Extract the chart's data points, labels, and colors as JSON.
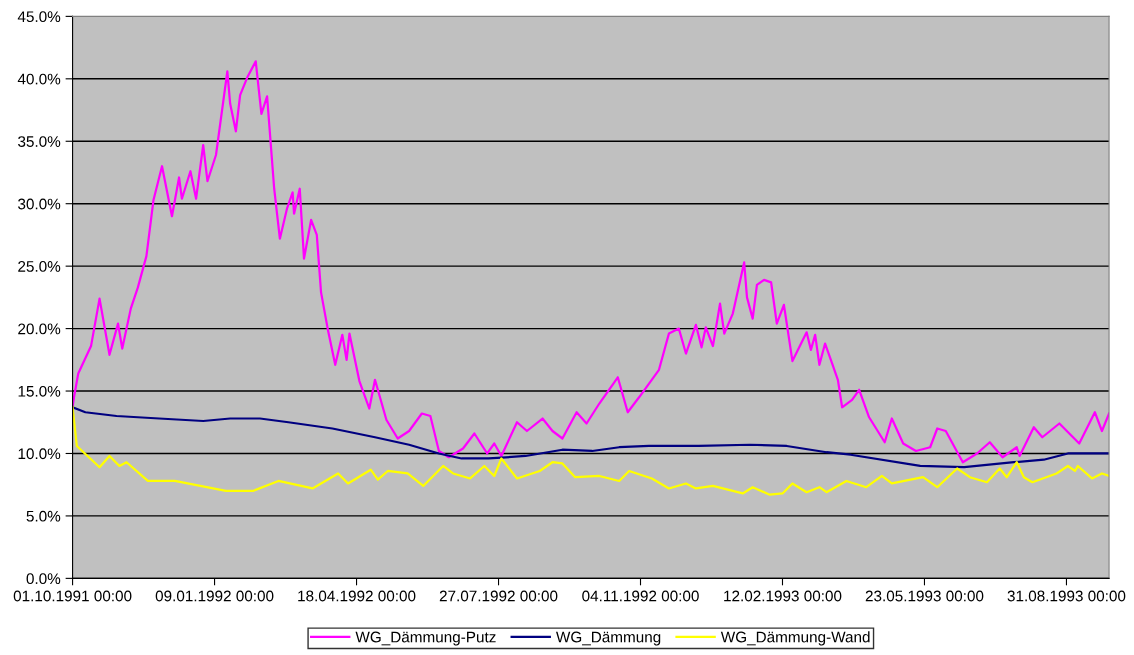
{
  "chart_data": {
    "type": "line",
    "xlim": [
      "1991-10-01T00:00",
      "1993-09-30T00:00"
    ],
    "xticks": [
      {
        "value": "1991-10-01T00:00",
        "label": "01.10.1991 00:00"
      },
      {
        "value": "1992-01-09T00:00",
        "label": "09.01.1992 00:00"
      },
      {
        "value": "1992-04-18T00:00",
        "label": "18.04.1992 00:00"
      },
      {
        "value": "1992-07-27T00:00",
        "label": "27.07.1992 00:00"
      },
      {
        "value": "1992-11-04T00:00",
        "label": "04.11.1992 00:00"
      },
      {
        "value": "1993-02-12T00:00",
        "label": "12.02.1993 00:00"
      },
      {
        "value": "1993-05-23T00:00",
        "label": "23.05.1993 00:00"
      },
      {
        "value": "1993-08-31T00:00",
        "label": "31.08.1993 00:00"
      }
    ],
    "ylim": [
      0,
      45
    ],
    "yticks": [
      {
        "value": 0,
        "label": "0.0%"
      },
      {
        "value": 5,
        "label": "5.0%"
      },
      {
        "value": 10,
        "label": "10.0%"
      },
      {
        "value": 15,
        "label": "15.0%"
      },
      {
        "value": 20,
        "label": "20.0%"
      },
      {
        "value": 25,
        "label": "25.0%"
      },
      {
        "value": 30,
        "label": "30.0%"
      },
      {
        "value": 35,
        "label": "35.0%"
      },
      {
        "value": 40,
        "label": "40.0%"
      },
      {
        "value": 45,
        "label": "45.0%"
      }
    ],
    "grid": "y",
    "legend": "bottom",
    "marker": "none",
    "line_style": "solid",
    "series": [
      {
        "name": "WG_Dämmung-Putz",
        "color": "#ff00ff",
        "x": [
          "1991-10-01",
          "1991-10-02",
          "1991-10-05",
          "1991-10-14",
          "1991-10-20",
          "1991-10-27",
          "1991-11-02",
          "1991-11-05",
          "1991-11-11",
          "1991-11-16",
          "1991-11-22",
          "1991-11-27",
          "1991-12-03",
          "1991-12-10",
          "1991-12-15",
          "1991-12-17",
          "1991-12-23",
          "1991-12-27",
          "1992-01-01",
          "1992-01-04",
          "1992-01-10",
          "1992-01-18",
          "1992-01-20",
          "1992-01-24",
          "1992-01-27",
          "1992-02-01",
          "1992-02-07",
          "1992-02-11",
          "1992-02-15",
          "1992-02-20",
          "1992-02-24",
          "1992-02-29",
          "1992-03-04",
          "1992-03-05",
          "1992-03-09",
          "1992-03-12",
          "1992-03-17",
          "1992-03-21",
          "1992-03-24",
          "1992-03-29",
          "1992-04-03",
          "1992-04-08",
          "1992-04-11",
          "1992-04-13",
          "1992-04-20",
          "1992-04-27",
          "1992-05-01",
          "1992-05-09",
          "1992-05-17",
          "1992-05-25",
          "1992-06-03",
          "1992-06-09",
          "1992-06-15",
          "1992-06-22",
          "1992-07-02",
          "1992-07-10",
          "1992-07-19",
          "1992-07-24",
          "1992-07-29",
          "1992-08-09",
          "1992-08-16",
          "1992-08-27",
          "1992-09-03",
          "1992-09-10",
          "1992-09-20",
          "1992-09-27",
          "1992-10-06",
          "1992-10-19",
          "1992-10-26",
          "1992-11-03",
          "1992-11-10",
          "1992-11-17",
          "1992-11-24",
          "1992-12-01",
          "1992-12-06",
          "1992-12-13",
          "1992-12-17",
          "1992-12-20",
          "1992-12-25",
          "1992-12-30",
          "1993-01-02",
          "1993-01-08",
          "1993-01-16",
          "1993-01-18",
          "1993-01-22",
          "1993-01-25",
          "1993-01-30",
          "1993-02-04",
          "1993-02-08",
          "1993-02-13",
          "1993-02-19",
          "1993-03-01",
          "1993-03-04",
          "1993-03-07",
          "1993-03-10",
          "1993-03-14",
          "1993-03-19",
          "1993-03-23",
          "1993-03-26",
          "1993-04-02",
          "1993-04-07",
          "1993-04-14",
          "1993-04-25",
          "1993-04-30",
          "1993-05-08",
          "1993-05-17",
          "1993-05-27",
          "1993-06-01",
          "1993-06-07",
          "1993-06-19",
          "1993-06-29",
          "1993-07-08",
          "1993-07-17",
          "1993-07-27",
          "1993-07-29",
          "1993-08-08",
          "1993-08-14",
          "1993-08-26",
          "1993-09-02",
          "1993-09-09",
          "1993-09-20",
          "1993-09-25",
          "1993-09-30"
        ],
        "values": [
          13.7,
          14.5,
          16.4,
          18.6,
          22.4,
          17.9,
          20.4,
          18.4,
          21.6,
          23.3,
          25.8,
          30.3,
          33.0,
          29.0,
          32.1,
          30.4,
          32.6,
          30.4,
          34.7,
          31.8,
          33.9,
          40.6,
          38.0,
          35.8,
          38.7,
          40.1,
          41.4,
          37.2,
          38.6,
          31.2,
          27.2,
          29.6,
          30.9,
          29.2,
          31.2,
          25.6,
          28.7,
          27.5,
          22.9,
          19.8,
          17.1,
          19.5,
          17.5,
          19.6,
          15.8,
          13.6,
          15.9,
          12.7,
          11.2,
          11.8,
          13.2,
          13.0,
          10.2,
          9.7,
          10.4,
          11.6,
          10.0,
          10.8,
          9.8,
          12.5,
          11.8,
          12.8,
          11.8,
          11.2,
          13.3,
          12.4,
          14.0,
          16.1,
          13.3,
          14.5,
          15.6,
          16.7,
          19.6,
          20.0,
          18.0,
          20.3,
          18.5,
          20.1,
          18.6,
          22.0,
          19.6,
          21.2,
          25.3,
          22.5,
          20.8,
          23.5,
          23.9,
          23.7,
          20.4,
          21.9,
          17.4,
          19.7,
          18.3,
          19.5,
          17.1,
          18.8,
          17.2,
          15.9,
          13.7,
          14.3,
          15.1,
          12.9,
          10.9,
          12.8,
          10.8,
          10.2,
          10.5,
          12.0,
          11.8,
          9.3,
          10.0,
          10.9,
          9.7,
          10.5,
          9.8,
          12.1,
          11.3,
          12.4,
          11.6,
          10.8,
          13.3,
          11.8,
          13.2
        ]
      },
      {
        "name": "WG_Dämmung",
        "color": "#000080",
        "x": [
          "1991-10-01",
          "1991-10-10",
          "1991-11-01",
          "1991-12-01",
          "1992-01-01",
          "1992-01-20",
          "1992-02-10",
          "1992-03-01",
          "1992-04-01",
          "1992-05-01",
          "1992-05-25",
          "1992-06-15",
          "1992-07-01",
          "1992-07-20",
          "1992-08-15",
          "1992-09-10",
          "1992-10-01",
          "1992-10-20",
          "1992-11-10",
          "1992-12-15",
          "1993-01-20",
          "1993-02-15",
          "1993-03-15",
          "1993-04-01",
          "1993-05-20",
          "1993-06-20",
          "1993-07-25",
          "1993-08-15",
          "1993-09-01",
          "1993-09-15",
          "1993-09-30"
        ],
        "values": [
          13.7,
          13.3,
          13.0,
          12.8,
          12.6,
          12.8,
          12.8,
          12.5,
          12.0,
          11.3,
          10.7,
          10.0,
          9.6,
          9.6,
          9.8,
          10.3,
          10.2,
          10.5,
          10.6,
          10.6,
          10.7,
          10.6,
          10.1,
          9.9,
          9.0,
          8.9,
          9.3,
          9.5,
          10.0,
          10.0,
          10.0
        ]
      },
      {
        "name": "WG_Dämmung-Wand",
        "color": "#ffff00",
        "x": [
          "1991-10-01",
          "1991-10-04",
          "1991-10-20",
          "1991-10-27",
          "1991-11-03",
          "1991-11-08",
          "1991-11-23",
          "1991-12-12",
          "1992-01-17",
          "1992-02-05",
          "1992-02-23",
          "1992-03-18",
          "1992-04-05",
          "1992-04-12",
          "1992-04-28",
          "1992-05-03",
          "1992-05-10",
          "1992-05-24",
          "1992-06-04",
          "1992-06-18",
          "1992-06-25",
          "1992-07-07",
          "1992-07-17",
          "1992-07-24",
          "1992-07-29",
          "1992-08-09",
          "1992-08-25",
          "1992-09-03",
          "1992-09-10",
          "1992-09-19",
          "1992-10-06",
          "1992-10-20",
          "1992-10-27",
          "1992-11-12",
          "1992-11-24",
          "1992-12-06",
          "1992-12-13",
          "1992-12-25",
          "1993-01-15",
          "1993-01-22",
          "1993-02-03",
          "1993-02-12",
          "1993-02-19",
          "1993-03-01",
          "1993-03-10",
          "1993-03-15",
          "1993-03-29",
          "1993-04-12",
          "1993-04-23",
          "1993-04-30",
          "1993-05-22",
          "1993-06-01",
          "1993-06-15",
          "1993-06-24",
          "1993-07-06",
          "1993-07-15",
          "1993-07-20",
          "1993-07-27",
          "1993-08-01",
          "1993-08-07",
          "1993-08-24",
          "1993-09-01",
          "1993-09-06",
          "1993-09-08",
          "1993-09-18",
          "1993-09-25",
          "1993-09-30"
        ],
        "values": [
          13.7,
          10.6,
          8.9,
          9.8,
          9.0,
          9.3,
          7.8,
          7.8,
          7.0,
          7.0,
          7.8,
          7.2,
          8.4,
          7.6,
          8.7,
          7.9,
          8.6,
          8.4,
          7.4,
          9.0,
          8.4,
          8.0,
          9.0,
          8.2,
          9.6,
          8.0,
          8.6,
          9.3,
          9.2,
          8.1,
          8.2,
          7.8,
          8.6,
          8.0,
          7.2,
          7.6,
          7.2,
          7.4,
          6.8,
          7.3,
          6.7,
          6.8,
          7.6,
          6.9,
          7.3,
          6.9,
          7.8,
          7.3,
          8.2,
          7.6,
          8.1,
          7.3,
          8.8,
          8.1,
          7.7,
          8.8,
          8.1,
          9.3,
          8.1,
          7.7,
          8.4,
          9.0,
          8.6,
          9.0,
          8.0,
          8.4,
          8.2
        ]
      }
    ]
  }
}
